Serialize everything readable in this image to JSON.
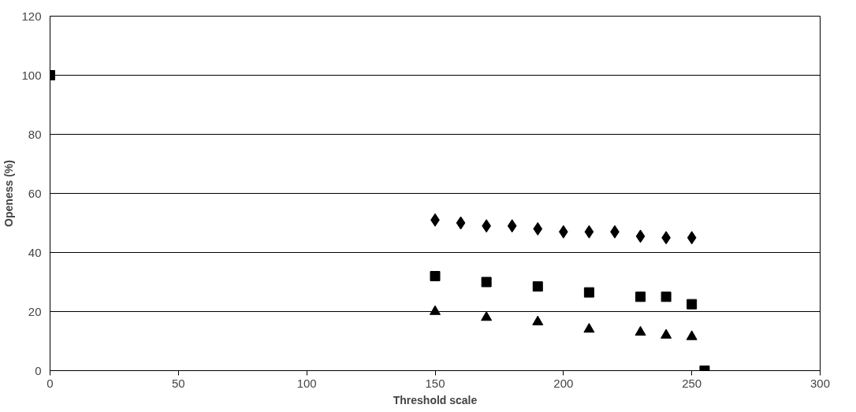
{
  "chart_data": {
    "type": "scatter",
    "xlabel": "Threshold scale",
    "ylabel": "Openess (%)",
    "xlim": [
      0,
      300
    ],
    "xticks": [
      0,
      50,
      100,
      150,
      200,
      250,
      300
    ],
    "ylim": [
      0,
      120
    ],
    "yticks": [
      0,
      20,
      40,
      60,
      80,
      100,
      120
    ],
    "grid": "y",
    "series": [
      {
        "color": "#000000",
        "marker": "diamond",
        "x": [
          150,
          160,
          170,
          180,
          190,
          200,
          210,
          220,
          230,
          240,
          250
        ],
        "values": [
          51,
          50,
          49,
          49,
          48,
          47,
          47,
          47,
          45.5,
          45,
          45
        ]
      },
      {
        "color": "#000000",
        "marker": "square",
        "x": [
          0,
          150,
          170,
          190,
          210,
          230,
          240,
          250,
          255
        ],
        "values": [
          100,
          32,
          30,
          28.5,
          26.5,
          25,
          25,
          22.5,
          0
        ]
      },
      {
        "color": "#000000",
        "marker": "triangle",
        "x": [
          150,
          170,
          190,
          210,
          230,
          240,
          250
        ],
        "values": [
          20,
          18,
          16.5,
          14,
          13,
          12,
          11.5
        ]
      }
    ]
  }
}
